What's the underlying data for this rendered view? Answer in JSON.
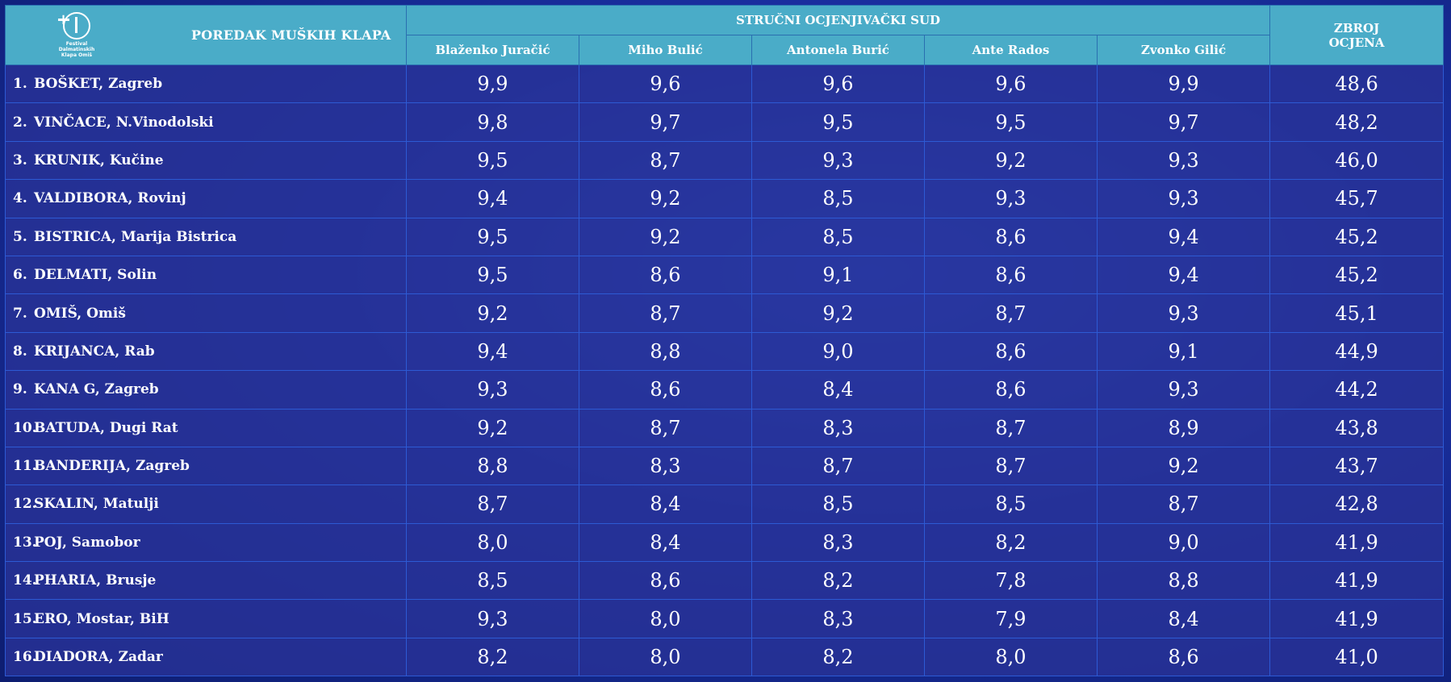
{
  "header": {
    "logo_text": [
      "Festival",
      "Dalmatinskih",
      "Klapa Omiš"
    ],
    "title": "POREDAK MUŠKIH KLAPA",
    "judges_group": "STRUČNI OCJENJIVAČKI SUD",
    "judges": [
      "Blaženko Juračić",
      "Miho Bulić",
      "Antonela Burić",
      "Ante Rados",
      "Zvonko Gilić"
    ],
    "sum_line1": "ZBROJ",
    "sum_line2": "OCJENA"
  },
  "rows": [
    {
      "rank": "1.",
      "name": "BOŠKET, Zagreb",
      "scores": [
        "9,9",
        "9,6",
        "9,6",
        "9,6",
        "9,9"
      ],
      "total": "48,6"
    },
    {
      "rank": "2.",
      "name": "VINČACE, N.Vinodolski",
      "scores": [
        "9,8",
        "9,7",
        "9,5",
        "9,5",
        "9,7"
      ],
      "total": "48,2"
    },
    {
      "rank": "3.",
      "name": "KRUNIK, Kučine",
      "scores": [
        "9,5",
        "8,7",
        "9,3",
        "9,2",
        "9,3"
      ],
      "total": "46,0"
    },
    {
      "rank": "4.",
      "name": "VALDIBORA, Rovinj",
      "scores": [
        "9,4",
        "9,2",
        "8,5",
        "9,3",
        "9,3"
      ],
      "total": "45,7"
    },
    {
      "rank": "5.",
      "name": "BISTRICA, Marija Bistrica",
      "scores": [
        "9,5",
        "9,2",
        "8,5",
        "8,6",
        "9,4"
      ],
      "total": "45,2"
    },
    {
      "rank": "6.",
      "name": "DELMATI, Solin",
      "scores": [
        "9,5",
        "8,6",
        "9,1",
        "8,6",
        "9,4"
      ],
      "total": "45,2"
    },
    {
      "rank": "7.",
      "name": "OMIŠ, Omiš",
      "scores": [
        "9,2",
        "8,7",
        "9,2",
        "8,7",
        "9,3"
      ],
      "total": "45,1"
    },
    {
      "rank": "8.",
      "name": "KRIJANCA, Rab",
      "scores": [
        "9,4",
        "8,8",
        "9,0",
        "8,6",
        "9,1"
      ],
      "total": "44,9"
    },
    {
      "rank": "9.",
      "name": "KANA G, Zagreb",
      "scores": [
        "9,3",
        "8,6",
        "8,4",
        "8,6",
        "9,3"
      ],
      "total": "44,2"
    },
    {
      "rank": "10.",
      "name": "BATUDA, Dugi Rat",
      "scores": [
        "9,2",
        "8,7",
        "8,3",
        "8,7",
        "8,9"
      ],
      "total": "43,8"
    },
    {
      "rank": "11.",
      "name": "BANDERIJA, Zagreb",
      "scores": [
        "8,8",
        "8,3",
        "8,7",
        "8,7",
        "9,2"
      ],
      "total": "43,7"
    },
    {
      "rank": "12.",
      "name": "SKALIN, Matulji",
      "scores": [
        "8,7",
        "8,4",
        "8,5",
        "8,5",
        "8,7"
      ],
      "total": "42,8"
    },
    {
      "rank": "13.",
      "name": "POJ, Samobor",
      "scores": [
        "8,0",
        "8,4",
        "8,3",
        "8,2",
        "9,0"
      ],
      "total": "41,9"
    },
    {
      "rank": "14.",
      "name": "PHARIA, Brusje",
      "scores": [
        "8,5",
        "8,6",
        "8,2",
        "7,8",
        "8,8"
      ],
      "total": "41,9"
    },
    {
      "rank": "15.",
      "name": "ERO, Mostar, BiH",
      "scores": [
        "9,3",
        "8,0",
        "8,3",
        "7,9",
        "8,4"
      ],
      "total": "41,9"
    },
    {
      "rank": "16.",
      "name": "DIADORA, Zadar",
      "scores": [
        "8,2",
        "8,0",
        "8,2",
        "8,0",
        "8,6"
      ],
      "total": "41,0"
    }
  ]
}
